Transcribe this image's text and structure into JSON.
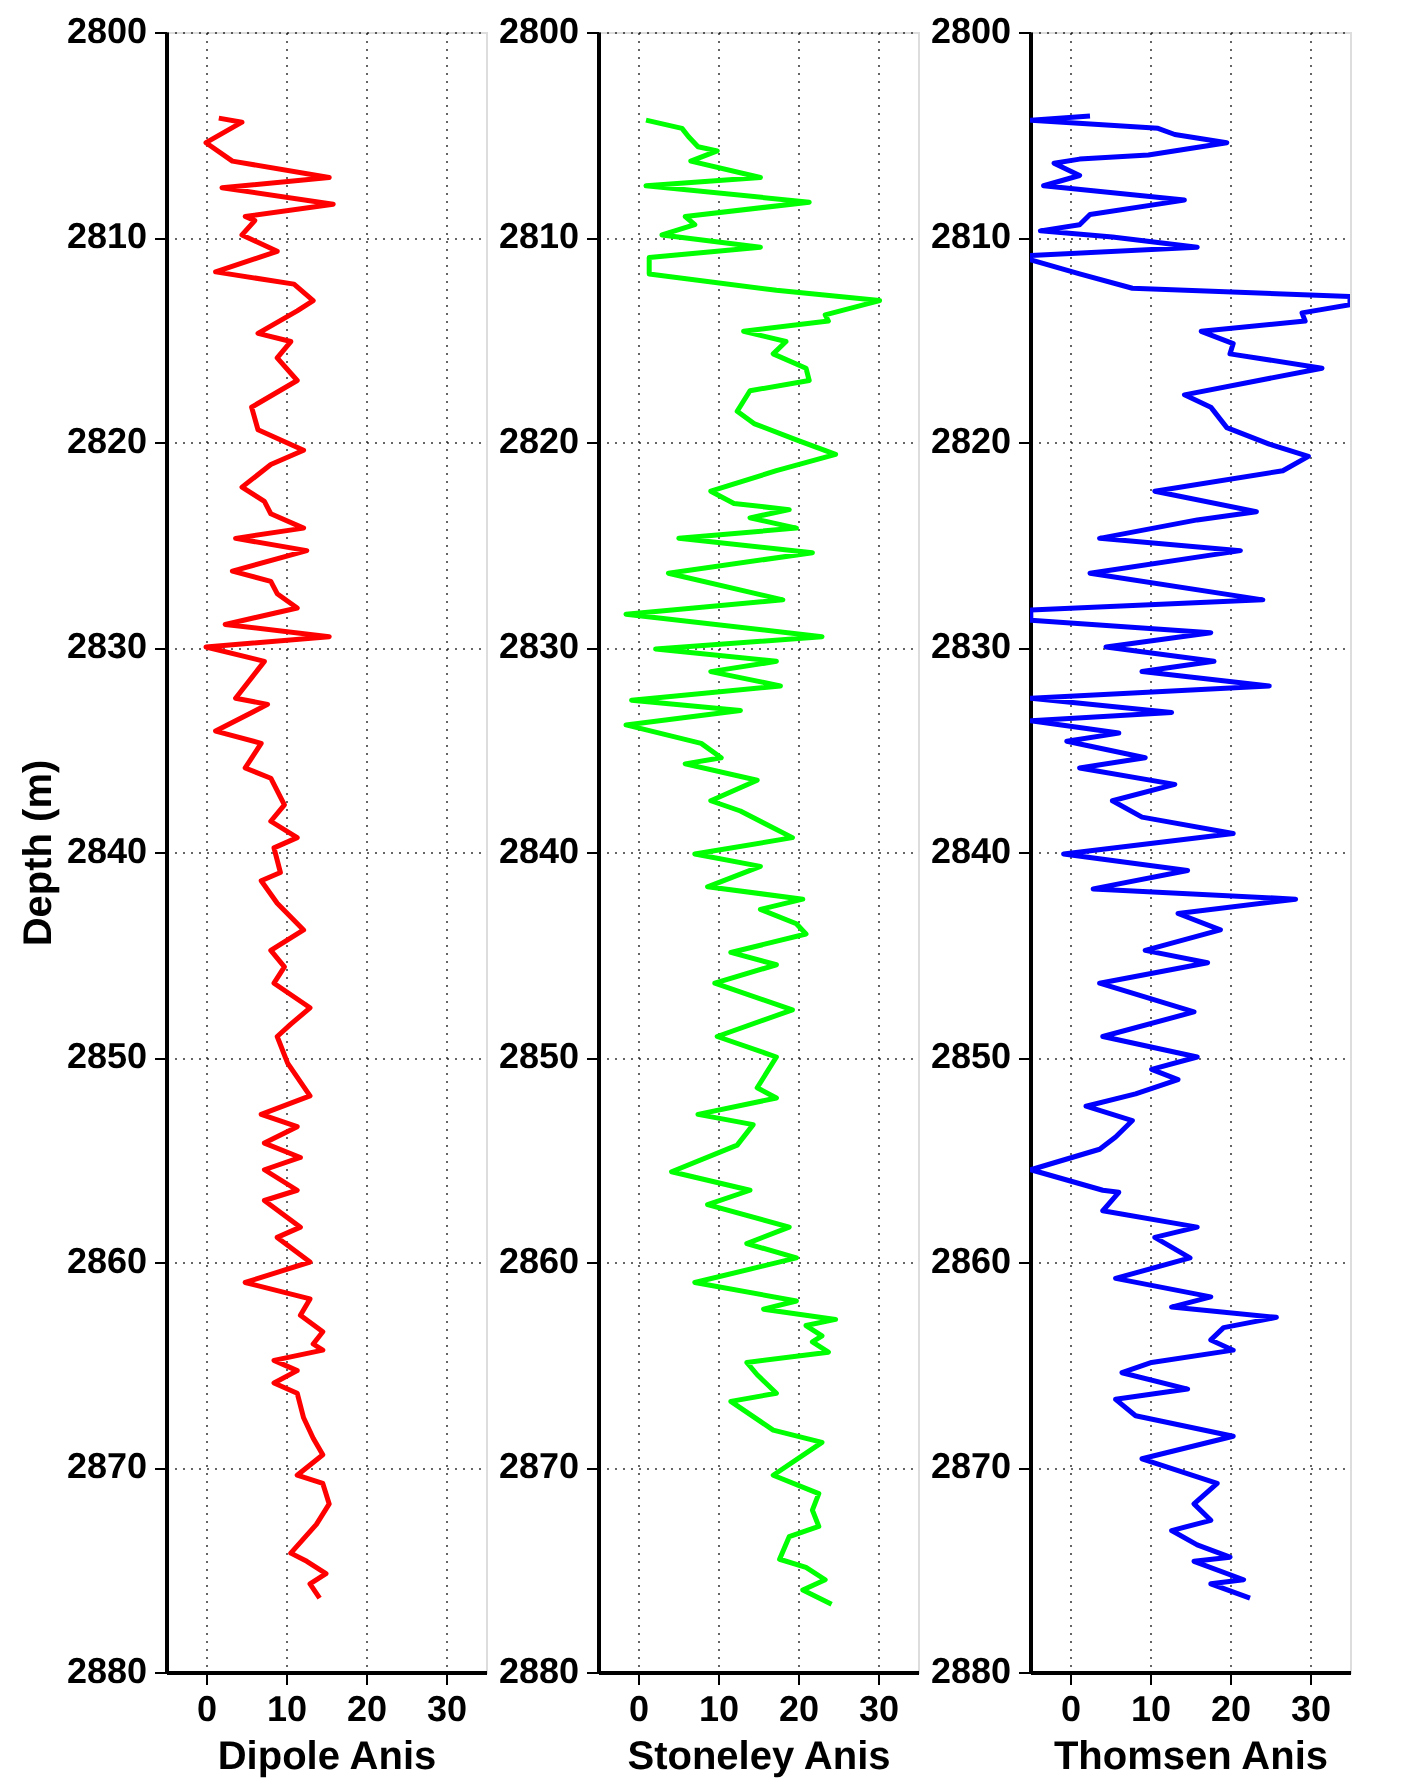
{
  "chart_data": [
    {
      "type": "line",
      "xlabel": "Dipole Anis",
      "ylabel": "Depth (m)",
      "xlim": [
        -5,
        35
      ],
      "xticks": [
        0,
        10,
        20,
        30
      ],
      "ylim": [
        2880,
        2800
      ],
      "yticks": [
        2800,
        2810,
        2820,
        2830,
        2840,
        2850,
        2860,
        2870,
        2880
      ],
      "grid": true,
      "marker": "none",
      "line_style": "solid",
      "series": [
        {
          "color": "#ff0000",
          "x": [
            1.6,
            4.5,
            0,
            3.3,
            15.4,
            2.0,
            15.9,
            4.9,
            6.1,
            4.5,
            8.9,
            1.2,
            11,
            13.4,
            11.4,
            6.5,
            10.6,
            8.9,
            11.4,
            5.7,
            6.5,
            12.2,
            8.1,
            4.5,
            7.3,
            8.1,
            12.2,
            3.7,
            12.6,
            3.3,
            8.1,
            8.9,
            11.4,
            2.4,
            15.4,
            0,
            7.3,
            3.7,
            7.7,
            1.2,
            6.9,
            4.9,
            8.1,
            9.8,
            8.1,
            11.4,
            8.5,
            9.3,
            6.9,
            8.9,
            12.2,
            8.1,
            9.8,
            8.5,
            13.0,
            10.6,
            8.9,
            10.2,
            13,
            6.9,
            11.4,
            7.3,
            11.8,
            7.3,
            11.4,
            7.3,
            11.8,
            8.9,
            13,
            4.9,
            13,
            11.8,
            14.6,
            13.4,
            14.6,
            8.5,
            11.4,
            8.5,
            11.4,
            12.2,
            13.4,
            14.6,
            11.4,
            14.6,
            15.4,
            13.8,
            10.6,
            12.6,
            15.0,
            13.0,
            14.2
          ],
          "values": [
            2804.2,
            2804.4,
            2805.4,
            2806.3,
            2807.1,
            2807.6,
            2808.4,
            2809.0,
            2809.2,
            2809.9,
            2810.7,
            2811.7,
            2812.3,
            2813.1,
            2813.6,
            2814.7,
            2815.1,
            2815.9,
            2817.0,
            2818.3,
            2819.4,
            2820.4,
            2821.1,
            2822.2,
            2822.9,
            2823.5,
            2824.2,
            2824.7,
            2825.3,
            2826.3,
            2826.8,
            2827.4,
            2828.1,
            2828.9,
            2829.5,
            2830.0,
            2830.7,
            2832.5,
            2832.8,
            2834.1,
            2834.7,
            2835.9,
            2836.4,
            2837.7,
            2838.5,
            2839.3,
            2839.8,
            2841.0,
            2841.4,
            2842.5,
            2843.8,
            2844.8,
            2845.6,
            2846.4,
            2847.6,
            2848.4,
            2849.0,
            2850.3,
            2851.9,
            2852.8,
            2853.4,
            2854.2,
            2854.9,
            2855.5,
            2856.5,
            2857.0,
            2858.3,
            2858.8,
            2860.0,
            2861.0,
            2861.8,
            2862.6,
            2863.4,
            2864.0,
            2864.3,
            2864.8,
            2865.3,
            2865.9,
            2866.4,
            2867.6,
            2868.6,
            2869.4,
            2870.4,
            2870.8,
            2871.8,
            2872.8,
            2874.2,
            2874.6,
            2875.2,
            2875.7,
            2876.4
          ]
        }
      ]
    },
    {
      "type": "line",
      "xlabel": "Stoneley Anis",
      "xlim": [
        -5,
        35
      ],
      "xticks": [
        0,
        10,
        20,
        30
      ],
      "ylim": [
        2880,
        2800
      ],
      "yticks": [
        2800,
        2810,
        2820,
        2830,
        2840,
        2850,
        2860,
        2870,
        2880
      ],
      "grid": true,
      "marker": "none",
      "line_style": "solid",
      "series": [
        {
          "color": "#00ff00",
          "x": [
            1.0,
            5.5,
            6.3,
            7.5,
            9.9,
            6.6,
            15.3,
            1.0,
            21.4,
            5.9,
            7.1,
            3.0,
            15.3,
            1.4,
            1.4,
            17.3,
            30.2,
            23.4,
            23.8,
            13.2,
            18.5,
            16.9,
            21.0,
            21.4,
            14.0,
            12.4,
            14.5,
            19.8,
            24.7,
            17.3,
            9.1,
            12.0,
            18.9,
            14.0,
            19.8,
            5.1,
            21.8,
            3.8,
            18.1,
            -1.5,
            23.0,
            2.2,
            17.3,
            9.1,
            17.8,
            -0.8,
            12.8,
            -1.5,
            7.9,
            10.4,
            5.9,
            14.9,
            9.1,
            12.8,
            19.3,
            7.1,
            15.3,
            8.7,
            20.6,
            15.3,
            19.8,
            21.0,
            11.6,
            17.3,
            9.6,
            19.3,
            9.9,
            17.3,
            14.9,
            17.3,
            7.5,
            14.4,
            12.4,
            4.2,
            14.0,
            8.7,
            18.9,
            13.6,
            19.8,
            7.1,
            19.8,
            15.7,
            24.7,
            21.0,
            23.0,
            21.8,
            23.8,
            13.6,
            14.9,
            17.3,
            11.6,
            16.9,
            23.0,
            16.9,
            22.6,
            21.8,
            22.6,
            18.9,
            17.7,
            21.0,
            23.4,
            20.6,
            24.2
          ],
          "values": [
            2804.3,
            2804.7,
            2805.1,
            2805.6,
            2805.8,
            2806.3,
            2807.1,
            2807.5,
            2808.3,
            2809.0,
            2809.4,
            2809.9,
            2810.5,
            2811.0,
            2811.8,
            2812.6,
            2813.1,
            2813.8,
            2814.1,
            2814.6,
            2815.1,
            2815.7,
            2816.4,
            2817.0,
            2817.5,
            2818.5,
            2819.1,
            2819.9,
            2820.6,
            2821.4,
            2822.4,
            2823.0,
            2823.3,
            2823.7,
            2824.2,
            2824.7,
            2825.4,
            2826.4,
            2827.7,
            2828.4,
            2829.5,
            2830.1,
            2830.7,
            2831.2,
            2831.9,
            2832.6,
            2833.1,
            2833.8,
            2834.7,
            2835.4,
            2835.7,
            2836.5,
            2837.5,
            2838.0,
            2839.3,
            2840.1,
            2840.7,
            2841.7,
            2842.3,
            2842.8,
            2843.5,
            2844.0,
            2844.9,
            2845.5,
            2846.4,
            2847.7,
            2849.0,
            2850.0,
            2851.5,
            2852.0,
            2852.8,
            2853.3,
            2854.3,
            2855.6,
            2856.5,
            2857.2,
            2858.3,
            2859.1,
            2859.8,
            2861.0,
            2861.9,
            2862.3,
            2862.8,
            2863.1,
            2863.6,
            2863.9,
            2864.4,
            2864.9,
            2865.5,
            2866.4,
            2866.8,
            2868.2,
            2868.8,
            2870.4,
            2871.3,
            2872.1,
            2872.9,
            2873.4,
            2874.5,
            2874.9,
            2875.5,
            2876.0,
            2876.7
          ]
        }
      ]
    },
    {
      "type": "line",
      "xlabel": "Thomsen Anis",
      "xlim": [
        -5,
        35
      ],
      "xticks": [
        0,
        10,
        20,
        30
      ],
      "ylim": [
        2880,
        2800
      ],
      "yticks": [
        2800,
        2810,
        2820,
        2830,
        2840,
        2850,
        2860,
        2870,
        2880
      ],
      "grid": true,
      "marker": "none",
      "line_style": "solid",
      "series": [
        {
          "color": "#0000ff",
          "x": [
            2.5,
            -4.9,
            11.0,
            13.1,
            19.6,
            9.8,
            1.2,
            -2.0,
            1.2,
            -3.3,
            14.3,
            2.5,
            1.2,
            -3.7,
            5.3,
            15.9,
            -4.9,
            -5,
            1.2,
            7.8,
            35,
            35,
            29.0,
            29.4,
            16.4,
            20.4,
            20.0,
            31.5,
            14.3,
            17.6,
            19.6,
            24.9,
            29.8,
            26.6,
            10.6,
            23.3,
            15.9,
            3.7,
            21.3,
            2.5,
            24.1,
            -4.9,
            -4.9,
            17.6,
            4.5,
            18.0,
            9.0,
            24.9,
            -4.9,
            12.7,
            -4.9,
            6.1,
            -0.4,
            9.4,
            1.2,
            13.1,
            5.3,
            9.0,
            20.4,
            -0.8,
            14.7,
            2.9,
            28.2,
            13.5,
            18.8,
            9.4,
            17.2,
            3.7,
            15.5,
            4.1,
            15.9,
            10.2,
            13.5,
            8.2,
            2.0,
            7.8,
            5.7,
            3.7,
            -4.9,
            4.1,
            6.1,
            4.1,
            15.9,
            10.6,
            15.0,
            5.7,
            17.6,
            12.7,
            25.8,
            19.2,
            17.6,
            20.4,
            10.2,
            6.5,
            14.7,
            5.7,
            8.2,
            20.4,
            9.0,
            18.4,
            15.5,
            17.6,
            12.7,
            15.9,
            20.0,
            15.5,
            21.7,
            17.6,
            22.5
          ],
          "values": [
            2804.1,
            2804.3,
            2804.7,
            2805.0,
            2805.4,
            2806.0,
            2806.2,
            2806.4,
            2807.0,
            2807.5,
            2808.2,
            2808.9,
            2809.4,
            2809.7,
            2810.0,
            2810.5,
            2810.9,
            2811.1,
            2811.8,
            2812.5,
            2812.9,
            2813.3,
            2813.7,
            2814.1,
            2814.6,
            2815.2,
            2815.7,
            2816.4,
            2817.7,
            2818.3,
            2819.3,
            2820.1,
            2820.7,
            2821.4,
            2822.4,
            2823.4,
            2823.8,
            2824.7,
            2825.3,
            2826.4,
            2827.7,
            2828.2,
            2828.7,
            2829.3,
            2830.0,
            2830.7,
            2831.2,
            2831.9,
            2832.5,
            2833.2,
            2833.6,
            2834.2,
            2834.6,
            2835.4,
            2835.9,
            2836.7,
            2837.5,
            2838.3,
            2839.1,
            2840.1,
            2840.9,
            2841.8,
            2842.3,
            2843.0,
            2843.8,
            2844.8,
            2845.4,
            2846.4,
            2847.8,
            2849.0,
            2850.0,
            2850.6,
            2851.1,
            2851.8,
            2852.4,
            2853.1,
            2853.9,
            2854.5,
            2855.5,
            2856.5,
            2856.6,
            2857.5,
            2858.3,
            2858.8,
            2859.8,
            2860.8,
            2861.7,
            2862.2,
            2862.7,
            2863.2,
            2863.8,
            2864.3,
            2864.9,
            2865.4,
            2866.2,
            2866.7,
            2867.5,
            2868.5,
            2869.6,
            2870.8,
            2871.8,
            2872.6,
            2873.1,
            2873.8,
            2874.4,
            2874.6,
            2875.5,
            2875.7,
            2876.4
          ]
        }
      ]
    }
  ]
}
